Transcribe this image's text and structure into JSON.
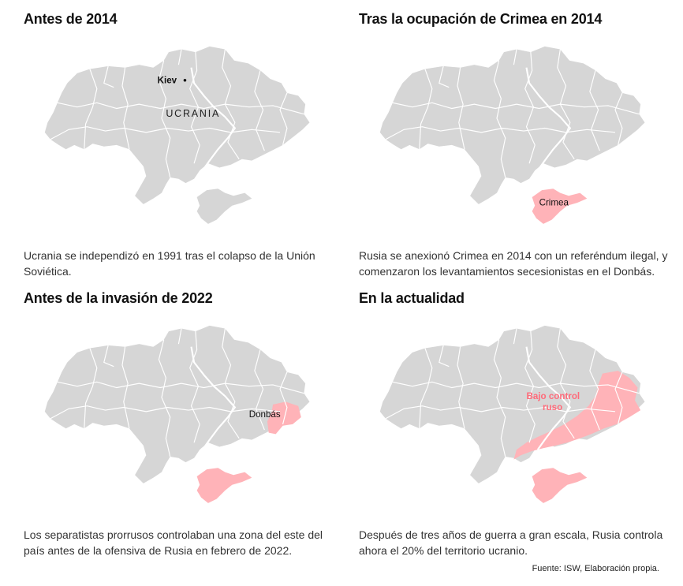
{
  "colors": {
    "ukraine_fill": "#d6d6d6",
    "oblast_border": "#ffffff",
    "russian_control": "#ffb3b8",
    "russian_label": "#ff6b7a"
  },
  "panels": [
    {
      "title": "Antes de 2014",
      "caption": "Ucrania se independizó en 1991 tras el colapso de la Unión Soviética.",
      "labels": {
        "kiev": "Kiev",
        "country": "UCRANIA"
      }
    },
    {
      "title": "Tras la ocupación de Crimea en 2014",
      "caption": "Rusia se anexionó Crimea en 2014 con un referéndum ilegal, y comenzaron los levantamientos secesionistas en el Donbás.",
      "labels": {
        "crimea": "Crimea"
      }
    },
    {
      "title": "Antes de la invasión de 2022",
      "caption": "Los separatistas prorrusos controlaban una zona del este del país antes de la ofensiva de Rusia en febrero de 2022.",
      "labels": {
        "donbas": "Donbás"
      }
    },
    {
      "title": "En la actualidad",
      "caption": "Después de tres años de guerra a gran escala, Rusia controla ahora el 20% del territorio ucranio.",
      "labels": {
        "controlled_line1": "Bajo control",
        "controlled_line2": "ruso"
      }
    }
  ],
  "source": "Fuente: ISW, Elaboración propia."
}
